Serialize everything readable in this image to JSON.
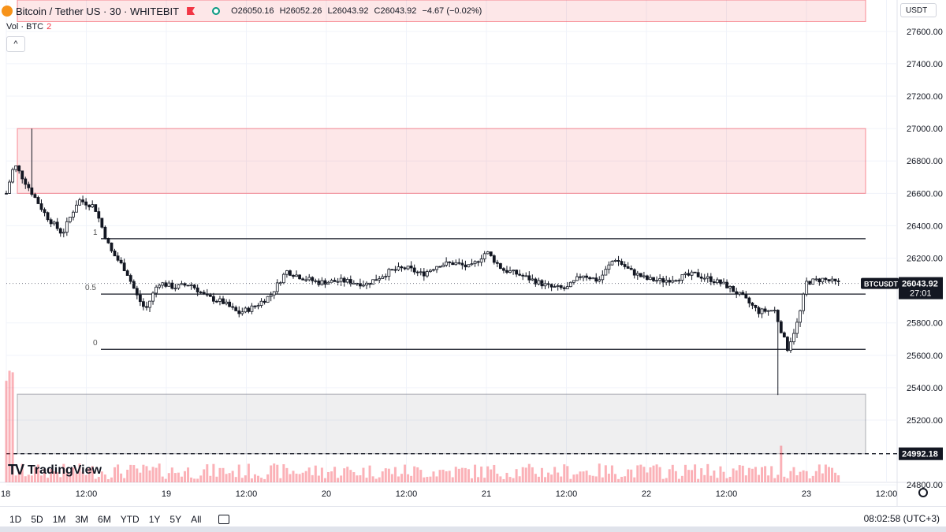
{
  "legend": {
    "symbol": "Bitcoin / Tether US · 30 · WHITEBIT",
    "open": "O26050.16",
    "high": "H26052.26",
    "low": "L26043.92",
    "close": "C26043.92",
    "change": "−4.67 (−0.02%)"
  },
  "volume_label": "Vol · BTC",
  "volume_value": "2",
  "currency": "USDT",
  "collapse_glyph": "^",
  "logo_text": "TradingView",
  "logo_mark": "TV",
  "ranges": [
    "1D",
    "5D",
    "1M",
    "3M",
    "6M",
    "YTD",
    "1Y",
    "5Y",
    "All"
  ],
  "clock": "08:02:58 (UTC+3)",
  "icons": [
    "bitcoin-icon",
    "flag-icon",
    "eye-icon",
    "chevron-up-icon",
    "calendar-icon",
    "settings-icon"
  ],
  "colors": {
    "up": "#131722",
    "down": "#131722",
    "resistance_zone": "#f23645",
    "support_zone": "#787b86",
    "volume": "#f7525f"
  },
  "chart_data": {
    "type": "candlestick",
    "symbol": "BTCUSDT",
    "timeframe": "30",
    "y_axis": {
      "ticks": [
        24800,
        25000,
        25200,
        25400,
        25600,
        25800,
        26000,
        26200,
        26400,
        26600,
        26800,
        27000,
        27200,
        27400,
        27600
      ],
      "tick_labels": [
        "24800.00",
        "25200.00",
        "25400.00",
        "25600.00",
        "25800.00",
        "26200.00",
        "26400.00",
        "26600.00",
        "26800.00",
        "27000.00",
        "27200.00",
        "27400.00",
        "27600.00"
      ],
      "range": [
        24700,
        27700
      ]
    },
    "x_axis": {
      "tick_labels": [
        "18",
        "12:00",
        "19",
        "12:00",
        "20",
        "12:00",
        "21",
        "12:00",
        "22",
        "12:00",
        "23",
        "12:00"
      ]
    },
    "last_price": {
      "label": "BTCUSDT",
      "value": "26043.92",
      "countdown": "27:01"
    },
    "dashed_level": {
      "value": "24992.18"
    },
    "fibonacci": [
      {
        "label": "1",
        "value": 26320
      },
      {
        "label": "0.5",
        "value": 25978
      },
      {
        "label": "0",
        "value": 25637
      }
    ],
    "zones": [
      {
        "role": "resistance",
        "from": 26600,
        "to": 27000
      },
      {
        "role": "resistance",
        "from": 27660,
        "to": 27900
      },
      {
        "role": "support",
        "from": 24992.18,
        "to": 25360
      }
    ],
    "anchors": [
      [
        18.0,
        26600
      ],
      [
        18.05,
        26780
      ],
      [
        18.15,
        26620
      ],
      [
        18.25,
        26460
      ],
      [
        18.35,
        26350
      ],
      [
        18.45,
        26560
      ],
      [
        18.55,
        26520
      ],
      [
        18.65,
        26250
      ],
      [
        18.75,
        26120
      ],
      [
        18.82,
        25960
      ],
      [
        18.87,
        25880
      ],
      [
        18.95,
        26050
      ],
      [
        19.05,
        26020
      ],
      [
        19.15,
        26040
      ],
      [
        19.25,
        25960
      ],
      [
        19.35,
        25930
      ],
      [
        19.45,
        25860
      ],
      [
        19.55,
        25900
      ],
      [
        19.65,
        25970
      ],
      [
        19.75,
        26120
      ],
      [
        19.85,
        26080
      ],
      [
        19.95,
        26050
      ],
      [
        20.1,
        26060
      ],
      [
        20.25,
        26040
      ],
      [
        20.4,
        26120
      ],
      [
        20.5,
        26140
      ],
      [
        20.6,
        26100
      ],
      [
        20.7,
        26160
      ],
      [
        20.8,
        26170
      ],
      [
        20.9,
        26140
      ],
      [
        21.0,
        26240
      ],
      [
        21.1,
        26130
      ],
      [
        21.2,
        26100
      ],
      [
        21.3,
        26060
      ],
      [
        21.4,
        26020
      ],
      [
        21.5,
        26010
      ],
      [
        21.6,
        26100
      ],
      [
        21.7,
        26060
      ],
      [
        21.8,
        26200
      ],
      [
        21.9,
        26120
      ],
      [
        22.0,
        26070
      ],
      [
        22.1,
        26060
      ],
      [
        22.2,
        26080
      ],
      [
        22.3,
        26100
      ],
      [
        22.4,
        26070
      ],
      [
        22.5,
        26030
      ],
      [
        22.6,
        25960
      ],
      [
        22.7,
        25870
      ],
      [
        22.8,
        25880
      ],
      [
        22.88,
        25640
      ],
      [
        22.95,
        25820
      ],
      [
        23.0,
        26050
      ],
      [
        23.1,
        26070
      ],
      [
        23.2,
        26044
      ]
    ],
    "extremes": {
      "high": 27000,
      "low": 25355
    },
    "volume": {
      "peak": 2
    }
  }
}
